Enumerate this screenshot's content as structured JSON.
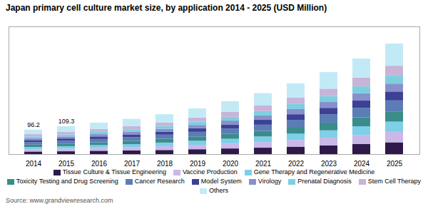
{
  "chart_data": {
    "type": "bar",
    "title": "Japan primary cell culture market size, by application 2014 - 2025 (USD Million)",
    "categories": [
      "2014",
      "2015",
      "2016",
      "2017",
      "2018",
      "2019",
      "2020",
      "2021",
      "2022",
      "2023",
      "2024",
      "2025"
    ],
    "series": [
      {
        "name": "Tissue Culture & Tissue Engineering",
        "color": "#2d1a4b",
        "values": [
          10,
          11,
          13,
          14,
          16,
          19,
          22,
          25,
          29,
          34,
          40,
          46
        ]
      },
      {
        "name": "Vaccine Production",
        "color": "#c9b8e8",
        "values": [
          9,
          10,
          11,
          13,
          15,
          17,
          19,
          22,
          26,
          30,
          35,
          41
        ]
      },
      {
        "name": "Gene Therapy and Regenerative Medicine",
        "color": "#7ecfe8",
        "values": [
          9,
          10,
          11,
          12,
          14,
          16,
          19,
          22,
          25,
          29,
          34,
          40
        ]
      },
      {
        "name": "Toxicity Testing and Drug Screening",
        "color": "#3a8c8a",
        "values": [
          9,
          10,
          11,
          13,
          15,
          17,
          19,
          22,
          26,
          30,
          35,
          40
        ]
      },
      {
        "name": "Cancer Research",
        "color": "#5b7db5",
        "values": [
          10,
          11,
          13,
          14,
          16,
          18,
          21,
          24,
          28,
          32,
          37,
          43
        ]
      },
      {
        "name": "Model System",
        "color": "#3d4196",
        "values": [
          8,
          9,
          10,
          11,
          12,
          14,
          16,
          19,
          22,
          26,
          30,
          35
        ]
      },
      {
        "name": "Virology",
        "color": "#8890cc",
        "values": [
          7,
          8,
          9,
          10,
          11,
          13,
          15,
          17,
          20,
          23,
          27,
          31
        ]
      },
      {
        "name": "Prenatal Diagnosis",
        "color": "#7dcfe0",
        "values": [
          7,
          8,
          9,
          10,
          11,
          13,
          15,
          17,
          20,
          23,
          27,
          31
        ]
      },
      {
        "name": "Stem Cell Therapy",
        "color": "#c8b4d8",
        "values": [
          9,
          10,
          11,
          13,
          14,
          16,
          19,
          22,
          25,
          29,
          34,
          39
        ]
      },
      {
        "name": "Others",
        "color": "#c2eaf6",
        "values": [
          18,
          22,
          25,
          28,
          32,
          36,
          42,
          49,
          56,
          65,
          75,
          87
        ]
      }
    ],
    "stacked": true,
    "ylim": [
      0,
      500
    ],
    "grid": false,
    "legend": "bottom",
    "tick_labels": "x",
    "annotations": [
      {
        "text": "96.2",
        "category": "2014"
      },
      {
        "text": "109.3",
        "category": "2015"
      }
    ],
    "source": "Source: www.grandviewresearch.com"
  }
}
